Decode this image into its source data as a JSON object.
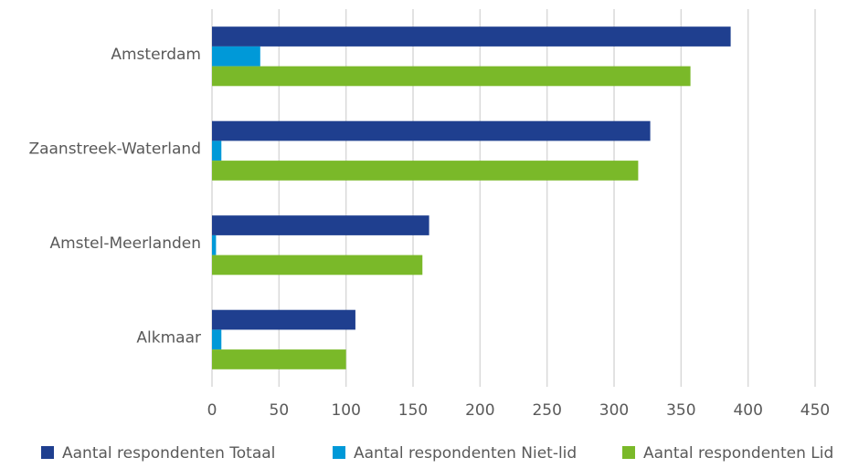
{
  "chart_data": {
    "type": "bar",
    "orientation": "horizontal",
    "categories": [
      "Amsterdam",
      "Zaanstreek-Waterland",
      "Amstel-Meerlanden",
      "Alkmaar"
    ],
    "series": [
      {
        "name": "Aantal respondenten Totaal",
        "color": "#1f3f8f",
        "values": [
          387,
          327,
          162,
          107
        ]
      },
      {
        "name": "Aantal respondenten Niet-lid",
        "color": "#0099d8",
        "values": [
          36,
          7,
          3,
          7
        ]
      },
      {
        "name": "Aantal respondenten Lid",
        "color": "#7ab929",
        "values": [
          357,
          318,
          157,
          100
        ]
      }
    ],
    "xlim": [
      0,
      450
    ],
    "xticks": [
      0,
      50,
      100,
      150,
      200,
      250,
      300,
      350,
      400,
      450
    ],
    "grid": true,
    "legend": "bottom"
  }
}
